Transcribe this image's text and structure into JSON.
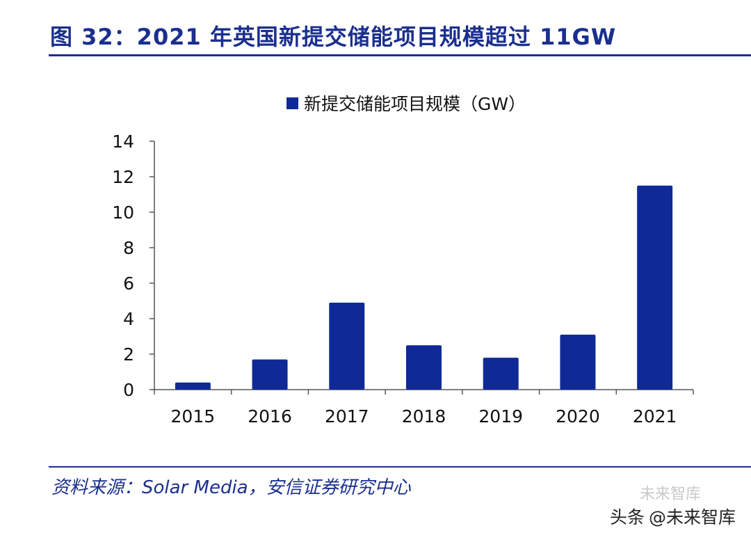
{
  "title": "图 32：2021 年英国新提交储能项目规模超过 11GW",
  "source": "资料来源：Solar Media，安信证券研究中心",
  "watermark": {
    "prefix": "头条",
    "handle": "@未来智库",
    "ghost": "未来智库"
  },
  "colors": {
    "bar": "#0f2a96",
    "title": "#1a2f8f",
    "axis": "#555555"
  },
  "chart_data": {
    "type": "bar",
    "title": "",
    "xlabel": "",
    "ylabel": "",
    "categories": [
      "2015",
      "2016",
      "2017",
      "2018",
      "2019",
      "2020",
      "2021"
    ],
    "series": [
      {
        "name": "新提交储能项目规模（GW）",
        "values": [
          0.4,
          1.7,
          4.9,
          2.5,
          1.8,
          3.1,
          11.5
        ]
      }
    ],
    "ylim": [
      0,
      14
    ],
    "yticks": [
      0,
      2,
      4,
      6,
      8,
      10,
      12,
      14
    ],
    "grid": false,
    "legend_position": "top-center"
  }
}
